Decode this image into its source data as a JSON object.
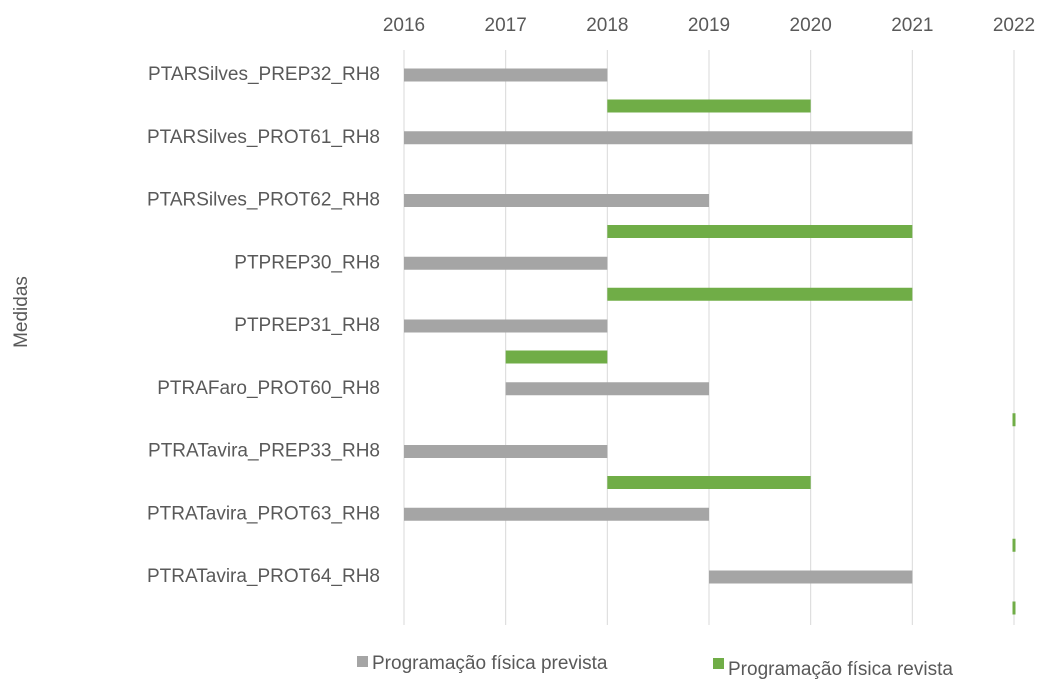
{
  "chart_data": {
    "type": "gantt",
    "y_label": "Medidas",
    "categories": [
      "PTARSilves_PREP32_RH8",
      "PTARSilves_PROT61_RH8",
      "PTARSilves_PROT62_RH8",
      "PTPREP30_RH8",
      "PTPREP31_RH8",
      "PTRAFaro_PROT60_RH8",
      "PTRATavira_PREP33_RH8",
      "PTRATavira_PROT63_RH8",
      "PTRATavira_PROT64_RH8"
    ],
    "series": [
      {
        "name": "Programação física prevista",
        "color": "#a5a5a5",
        "values": [
          [
            2016,
            2018
          ],
          [
            2016,
            2021
          ],
          [
            2016,
            2019
          ],
          [
            2016,
            2018
          ],
          [
            2016,
            2018
          ],
          [
            2017,
            2019
          ],
          [
            2016,
            2018
          ],
          [
            2016,
            2019
          ],
          [
            2019,
            2021
          ]
        ]
      },
      {
        "name": "Programação física revista",
        "color": "#70ad47",
        "values": [
          [
            2018,
            2020
          ],
          null,
          [
            2018,
            2021
          ],
          [
            2018,
            2021
          ],
          [
            2017,
            2018
          ],
          [
            2022,
            2022
          ],
          [
            2018,
            2020
          ],
          [
            2022,
            2022
          ],
          [
            2022,
            2022
          ]
        ]
      }
    ],
    "xlim": [
      2016,
      2022
    ],
    "xticks": [
      2016,
      2017,
      2018,
      2019,
      2020,
      2021,
      2022
    ],
    "grid": true,
    "legend": "bottom"
  }
}
